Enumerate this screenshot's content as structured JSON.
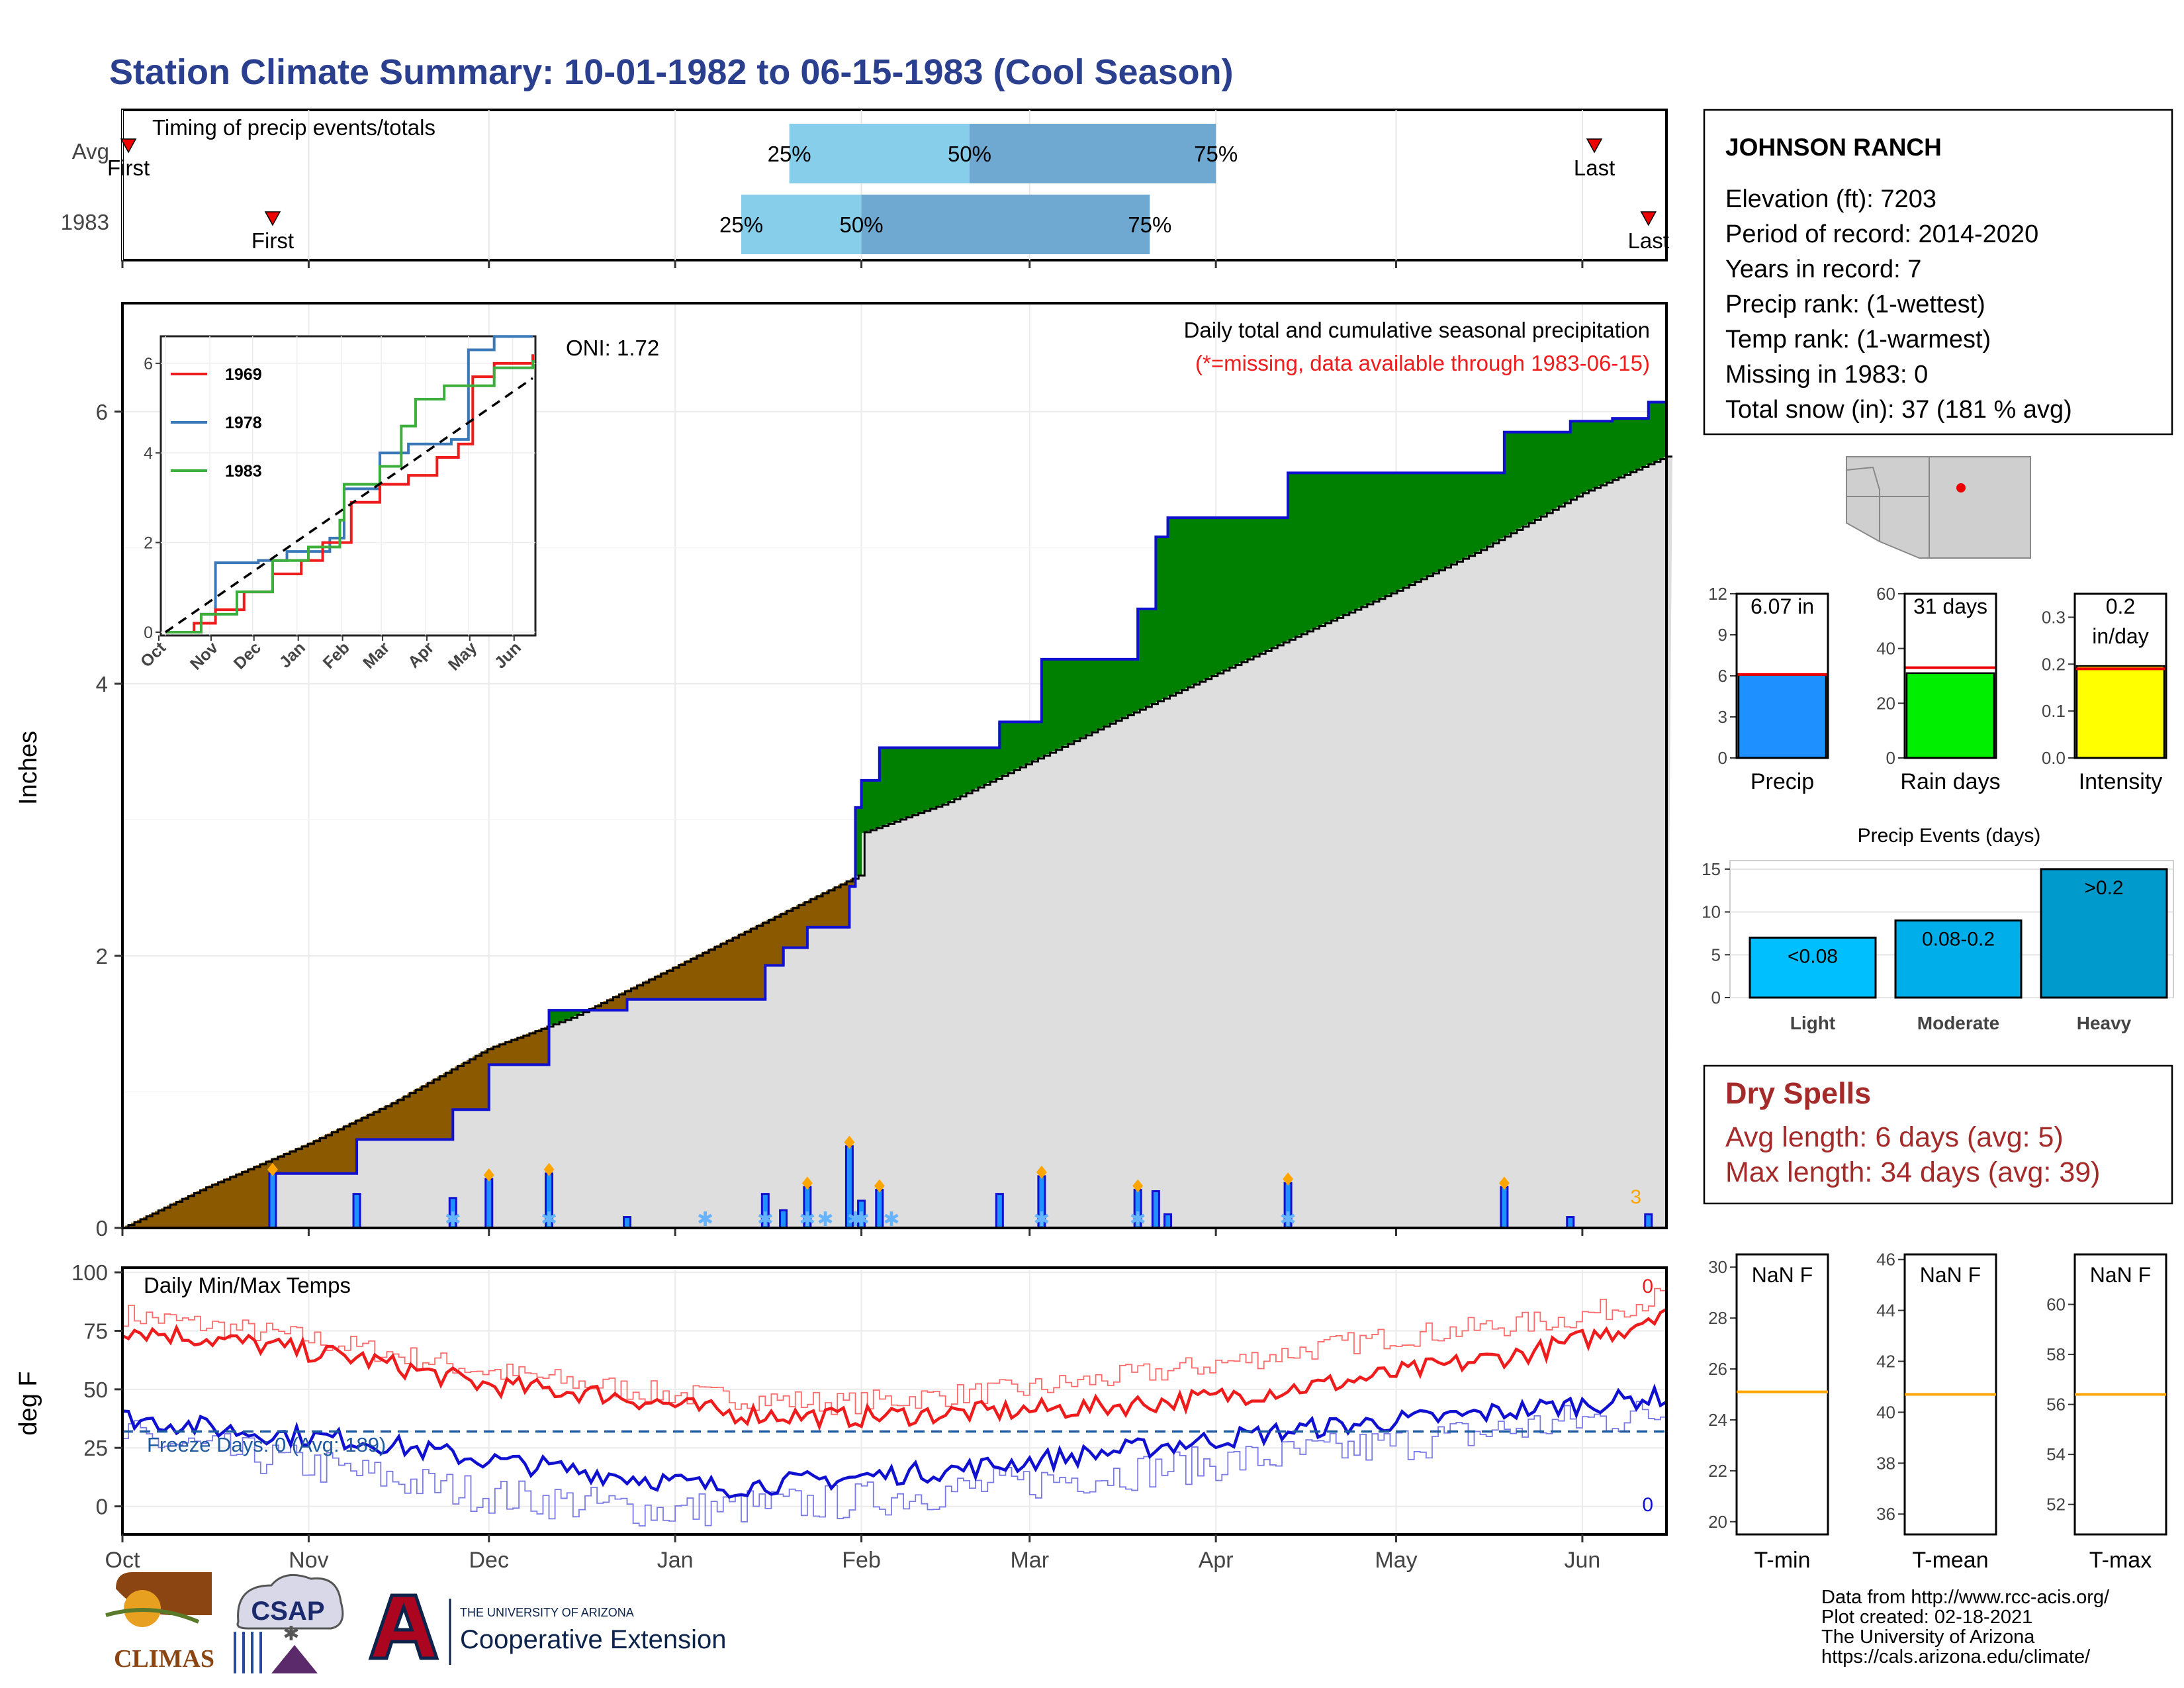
{
  "title": "Station Climate Summary: 10-01-1982 to 06-15-1983 (Cool Season)",
  "colors": {
    "title": "#2b3f8f",
    "brown": "#8b5a00",
    "green": "#008000",
    "gray_fill": "#dedede",
    "blue_line": "#1010d0",
    "red": "#ee1c1c",
    "light_blue": "#87ceeb",
    "steel_blue": "#6fa8d0",
    "dry_spells": "#a52a2a",
    "orange": "#ffa500"
  },
  "timing": {
    "label": "Timing of precip events/totals",
    "rows": [
      {
        "name": "Avg",
        "first_label": "First",
        "last_label": "Last",
        "first_date": "1982-10-02",
        "last_date": "1983-06-03",
        "p25_label": "25%",
        "p50_label": "50%",
        "p75_label": "75%",
        "p25_date": "1983-01-20",
        "p50_date": "1983-02-19",
        "p75_date": "1983-04-01"
      },
      {
        "name": "1983",
        "first_label": "First",
        "last_label": "Last",
        "first_date": "1982-10-26",
        "last_date": "1983-06-12",
        "p25_date": "1983-01-12",
        "p50_date": "1983-02-01",
        "p75_date": "1983-03-21",
        "p25_label": "25%",
        "p50_label": "50%",
        "p75_label": "75%"
      }
    ]
  },
  "precip": {
    "ylabel": "Inches",
    "subtitle": "Daily total and cumulative seasonal precipitation",
    "missing_note": "(*=missing, data available through 1983-06-15)",
    "oni": "ONI: 1.72",
    "missing_count_label": "3",
    "y_ticks": [
      "0",
      "2",
      "4",
      "6"
    ]
  },
  "inset": {
    "x_ticks": [
      "Oct",
      "Nov",
      "Dec",
      "Jan",
      "Feb",
      "Mar",
      "Apr",
      "May",
      "Jun"
    ],
    "y_ticks": [
      "0",
      "2",
      "4",
      "6"
    ],
    "legend": [
      {
        "name": "1969",
        "color": "#ee1c1c"
      },
      {
        "name": "1978",
        "color": "#3b78b8"
      },
      {
        "name": "1983",
        "color": "#3cae3c"
      }
    ]
  },
  "temps": {
    "label": "Daily Min/Max Temps",
    "ylabel": "deg F",
    "freeze_label": "Freeze Days: 0 (Avg: 189)",
    "max_count_label": "0",
    "min_count_label": "0",
    "y_ticks": [
      "0",
      "25",
      "50",
      "75",
      "100"
    ],
    "x_ticks": [
      "Oct",
      "Nov",
      "Dec",
      "Jan",
      "Feb",
      "Mar",
      "Apr",
      "May",
      "Jun"
    ]
  },
  "station": {
    "name": "JOHNSON RANCH",
    "lines": [
      "Elevation (ft): 7203",
      "Period of record: 2014-2020",
      "Years in record: 7",
      "Precip rank:  (1-wettest)",
      "Temp rank:  (1-warmest)",
      "Missing in 1983: 0",
      "Total snow (in): 37 (181 % avg)"
    ]
  },
  "summary_bars": [
    {
      "name": "Precip",
      "value_label": "6.07 in",
      "value": 6.07,
      "avg": 6.1,
      "ymax": 12,
      "ticks": [
        "0",
        "3",
        "6",
        "9",
        "12"
      ],
      "color": "#1e90ff"
    },
    {
      "name": "Rain days",
      "value_label": "31 days",
      "value": 31,
      "avg": 33,
      "ymax": 60,
      "ticks": [
        "0",
        "20",
        "40",
        "60"
      ],
      "color": "#00ee00"
    },
    {
      "name": "Intensity",
      "value_label_1": "0.2",
      "value_label_2": "in/day",
      "value": 0.196,
      "avg": 0.19,
      "ymax": 0.35,
      "ticks": [
        "0.0",
        "0.1",
        "0.2",
        "0.3"
      ],
      "color": "#ffff00"
    }
  ],
  "precip_events": {
    "title": "Precip Events (days)",
    "ticks": [
      "0",
      "5",
      "10",
      "15"
    ],
    "bars": [
      {
        "name": "Light",
        "label": "<0.08",
        "value": 7,
        "color": "#00bfff"
      },
      {
        "name": "Moderate",
        "label": "0.08-0.2",
        "value": 9,
        "color": "#00aeea"
      },
      {
        "name": "Heavy",
        "label": ">0.2",
        "value": 15,
        "color": "#009acd"
      }
    ]
  },
  "dry_spells": {
    "title": "Dry Spells",
    "avg_line": "Avg length: 6 days (avg: 5)",
    "max_line": "Max length: 34 days (avg: 39)"
  },
  "temp_boxes": [
    {
      "name": "T-min",
      "label": "NaN F",
      "ticks": [
        "20",
        "22",
        "24",
        "26",
        "28",
        "30"
      ],
      "ymin": 19.5,
      "ymax": 30.5,
      "avg": 25.1
    },
    {
      "name": "T-mean",
      "label": "NaN F",
      "ticks": [
        "36",
        "38",
        "40",
        "42",
        "44",
        "46"
      ],
      "ymin": 35.2,
      "ymax": 46.2,
      "avg": 40.7
    },
    {
      "name": "T-max",
      "label": "NaN F",
      "ticks": [
        "52",
        "54",
        "56",
        "58",
        "60"
      ],
      "ymin": 50.8,
      "ymax": 62.0,
      "avg": 56.4
    }
  ],
  "footer": {
    "lines": [
      "Data from http://www.rcc-acis.org/",
      "Plot created: 02-18-2021",
      "The University of Arizona",
      "https://cals.arizona.edu/climate/"
    ],
    "logo_climas": "CLIMAS",
    "logo_csap": "CSAP",
    "logo_ua_line1": "THE UNIVERSITY OF ARIZONA",
    "logo_ua_line2": "Cooperative Extension"
  },
  "chart_data": {
    "type": "area",
    "title": "Daily total and cumulative seasonal precipitation",
    "ylabel": "Inches",
    "ylim": [
      0,
      6.7
    ],
    "xlim": [
      "1982-10-01",
      "1983-06-15"
    ],
    "x_ticks": [
      "Oct",
      "Nov",
      "Dec",
      "Jan",
      "Feb",
      "Mar",
      "Apr",
      "May",
      "Jun"
    ],
    "series": [
      {
        "name": "1983",
        "kind": "cumulative",
        "points": [
          [
            "1982-10-01",
            0
          ],
          [
            "1982-10-26",
            0
          ],
          [
            "1982-10-26",
            0.4
          ],
          [
            "1982-11-09",
            0.4
          ],
          [
            "1982-11-09",
            0.65
          ],
          [
            "1982-11-25",
            0.65
          ],
          [
            "1982-11-25",
            0.87
          ],
          [
            "1982-12-01",
            0.87
          ],
          [
            "1982-12-01",
            1.2
          ],
          [
            "1982-12-11",
            1.2
          ],
          [
            "1982-12-11",
            1.6
          ],
          [
            "1982-12-24",
            1.6
          ],
          [
            "1982-12-24",
            1.68
          ],
          [
            "1983-01-16",
            1.68
          ],
          [
            "1983-01-16",
            1.93
          ],
          [
            "1983-01-19",
            1.93
          ],
          [
            "1983-01-19",
            2.06
          ],
          [
            "1983-01-23",
            2.06
          ],
          [
            "1983-01-23",
            2.21
          ],
          [
            "1983-01-30",
            2.21
          ],
          [
            "1983-01-30",
            2.51
          ],
          [
            "1983-01-31",
            2.51
          ],
          [
            "1983-01-31",
            3.09
          ],
          [
            "1983-02-01",
            3.09
          ],
          [
            "1983-02-01",
            3.29
          ],
          [
            "1983-02-04",
            3.29
          ],
          [
            "1983-02-04",
            3.53
          ],
          [
            "1983-02-24",
            3.53
          ],
          [
            "1983-02-24",
            3.72
          ],
          [
            "1983-03-03",
            3.72
          ],
          [
            "1983-03-03",
            4.18
          ],
          [
            "1983-03-19",
            4.18
          ],
          [
            "1983-03-19",
            4.55
          ],
          [
            "1983-03-22",
            4.55
          ],
          [
            "1983-03-22",
            5.08
          ],
          [
            "1983-03-24",
            5.08
          ],
          [
            "1983-03-24",
            5.22
          ],
          [
            "1983-04-13",
            5.22
          ],
          [
            "1983-04-13",
            5.55
          ],
          [
            "1983-05-19",
            5.55
          ],
          [
            "1983-05-19",
            5.85
          ],
          [
            "1983-05-30",
            5.85
          ],
          [
            "1983-05-30",
            5.93
          ],
          [
            "1983-06-06",
            5.93
          ],
          [
            "1983-06-06",
            5.95
          ],
          [
            "1983-06-12",
            5.95
          ],
          [
            "1983-06-12",
            6.07
          ],
          [
            "1983-06-15",
            6.07
          ]
        ]
      },
      {
        "name": "Avg",
        "kind": "cumulative",
        "points": [
          [
            "1982-10-01",
            0
          ],
          [
            "1982-10-15",
            0.3
          ],
          [
            "1982-11-01",
            0.62
          ],
          [
            "1982-11-15",
            0.92
          ],
          [
            "1982-12-01",
            1.32
          ],
          [
            "1982-12-15",
            1.55
          ],
          [
            "1983-01-01",
            1.92
          ],
          [
            "1983-01-15",
            2.23
          ],
          [
            "1983-02-01",
            2.6
          ],
          [
            "1983-02-01",
            2.9
          ],
          [
            "1983-02-15",
            3.12
          ],
          [
            "1983-03-01",
            3.42
          ],
          [
            "1983-03-15",
            3.72
          ],
          [
            "1983-04-01",
            4.07
          ],
          [
            "1983-04-15",
            4.36
          ],
          [
            "1983-05-01",
            4.68
          ],
          [
            "1983-05-15",
            4.98
          ],
          [
            "1983-06-01",
            5.4
          ],
          [
            "1983-06-15",
            5.67
          ]
        ]
      }
    ],
    "daily_precip": [
      {
        "date": "1982-10-26",
        "value": 0.4
      },
      {
        "date": "1982-11-09",
        "value": 0.25
      },
      {
        "date": "1982-11-25",
        "value": 0.22
      },
      {
        "date": "1982-12-01",
        "value": 0.36
      },
      {
        "date": "1982-12-11",
        "value": 0.4
      },
      {
        "date": "1982-12-24",
        "value": 0.08
      },
      {
        "date": "1983-01-16",
        "value": 0.25
      },
      {
        "date": "1983-01-19",
        "value": 0.13
      },
      {
        "date": "1983-01-23",
        "value": 0.3
      },
      {
        "date": "1983-01-30",
        "value": 0.6
      },
      {
        "date": "1983-02-01",
        "value": 0.2
      },
      {
        "date": "1983-02-04",
        "value": 0.28
      },
      {
        "date": "1983-02-24",
        "value": 0.25
      },
      {
        "date": "1983-03-03",
        "value": 0.38
      },
      {
        "date": "1983-03-19",
        "value": 0.28
      },
      {
        "date": "1983-03-22",
        "value": 0.27
      },
      {
        "date": "1983-03-24",
        "value": 0.1
      },
      {
        "date": "1983-04-13",
        "value": 0.33
      },
      {
        "date": "1983-05-19",
        "value": 0.3
      },
      {
        "date": "1983-05-30",
        "value": 0.08
      },
      {
        "date": "1983-06-12",
        "value": 0.1
      }
    ],
    "inset_series": {
      "x_range": [
        "1982-10-01",
        "1983-06-15"
      ],
      "y_range": [
        0,
        6.5
      ],
      "1969": [
        [
          0,
          0
        ],
        [
          20,
          0.2
        ],
        [
          35,
          0.5
        ],
        [
          55,
          0.9
        ],
        [
          75,
          1.3
        ],
        [
          95,
          1.6
        ],
        [
          110,
          2.0
        ],
        [
          130,
          2.9
        ],
        [
          150,
          3.3
        ],
        [
          170,
          3.5
        ],
        [
          190,
          3.9
        ],
        [
          205,
          4.2
        ],
        [
          215,
          5.7
        ],
        [
          230,
          6.0
        ],
        [
          257,
          6.2
        ]
      ],
      "1978": [
        [
          0,
          0
        ],
        [
          25,
          0.4
        ],
        [
          35,
          1.55
        ],
        [
          65,
          1.6
        ],
        [
          85,
          1.8
        ],
        [
          115,
          2.1
        ],
        [
          125,
          3.2
        ],
        [
          150,
          4.0
        ],
        [
          170,
          4.2
        ],
        [
          200,
          4.3
        ],
        [
          212,
          6.3
        ],
        [
          230,
          6.6
        ],
        [
          257,
          6.6
        ]
      ],
      "1983": [
        [
          0,
          0
        ],
        [
          25,
          0.4
        ],
        [
          50,
          0.9
        ],
        [
          75,
          1.6
        ],
        [
          100,
          1.9
        ],
        [
          122,
          2.5
        ],
        [
          125,
          3.3
        ],
        [
          150,
          3.7
        ],
        [
          165,
          4.6
        ],
        [
          175,
          5.2
        ],
        [
          195,
          5.5
        ],
        [
          230,
          5.9
        ],
        [
          257,
          6.07
        ]
      ],
      "avg": [
        [
          0,
          0
        ],
        [
          257,
          5.67
        ]
      ]
    },
    "temps": {
      "ylabel": "deg F",
      "ylim": [
        -12,
        102
      ],
      "max_1983": [
        [
          0,
          76
        ],
        [
          20,
          70
        ],
        [
          40,
          63
        ],
        [
          60,
          52
        ],
        [
          80,
          48
        ],
        [
          100,
          40
        ],
        [
          120,
          38
        ],
        [
          140,
          40
        ],
        [
          160,
          42
        ],
        [
          180,
          46
        ],
        [
          200,
          52
        ],
        [
          220,
          60
        ],
        [
          235,
          66
        ],
        [
          250,
          76
        ],
        [
          257,
          85
        ]
      ],
      "max_avg": [
        [
          0,
          82
        ],
        [
          30,
          72
        ],
        [
          60,
          58
        ],
        [
          90,
          48
        ],
        [
          120,
          44
        ],
        [
          150,
          50
        ],
        [
          180,
          60
        ],
        [
          210,
          72
        ],
        [
          240,
          80
        ],
        [
          257,
          90
        ]
      ],
      "min_1983": [
        [
          0,
          38
        ],
        [
          20,
          32
        ],
        [
          40,
          28
        ],
        [
          60,
          20
        ],
        [
          80,
          14
        ],
        [
          100,
          8
        ],
        [
          120,
          12
        ],
        [
          140,
          16
        ],
        [
          160,
          22
        ],
        [
          180,
          28
        ],
        [
          200,
          34
        ],
        [
          220,
          38
        ],
        [
          240,
          43
        ],
        [
          257,
          47
        ]
      ],
      "min_avg": [
        [
          0,
          30
        ],
        [
          30,
          18
        ],
        [
          60,
          5
        ],
        [
          90,
          -2
        ],
        [
          120,
          2
        ],
        [
          150,
          10
        ],
        [
          180,
          18
        ],
        [
          210,
          26
        ],
        [
          240,
          36
        ],
        [
          257,
          40
        ]
      ],
      "freeze_line": 32
    }
  }
}
